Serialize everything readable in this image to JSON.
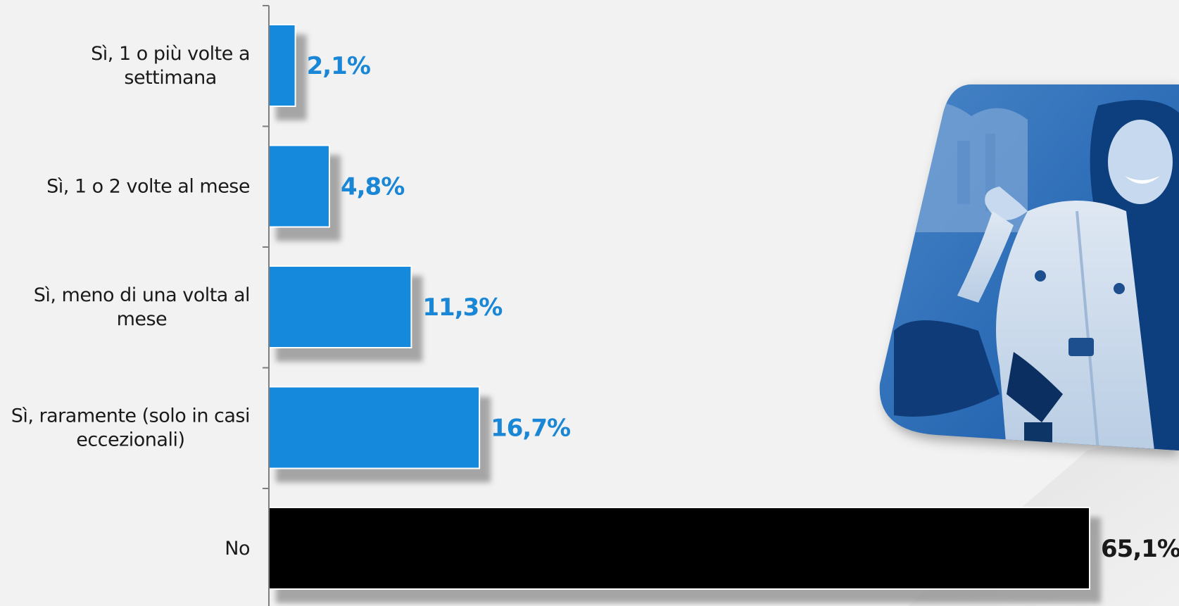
{
  "chart_data": {
    "type": "bar",
    "orientation": "horizontal",
    "categories": [
      [
        "Sì, 1 o più volte a",
        "settimana"
      ],
      [
        "Sì, 1 o 2 volte al mese"
      ],
      [
        "Sì, meno di una volta al",
        "mese"
      ],
      [
        "Sì, raramente (solo in casi",
        "eccezionali)"
      ],
      [
        "No"
      ]
    ],
    "values": [
      2.1,
      4.8,
      11.3,
      16.7,
      65.1
    ],
    "value_labels": [
      "2,1%",
      "4,8%",
      "11,3%",
      "16,7%",
      "65,1%"
    ],
    "xlim": [
      0,
      65.1
    ],
    "unit": "%",
    "grid": false,
    "legend": "none",
    "colors": {
      "highlight_bar": "#1589dc",
      "highlight_label": "#1a86d6",
      "emphasis_bar": "#000000",
      "emphasis_label": "#1a1a1a"
    },
    "bar_color_keys": [
      "highlight",
      "highlight",
      "highlight",
      "highlight",
      "emphasis"
    ]
  },
  "decoration": {
    "photo_subject": "smiling-woman-with-handbag",
    "photo_tint": "#1f6fbf"
  }
}
